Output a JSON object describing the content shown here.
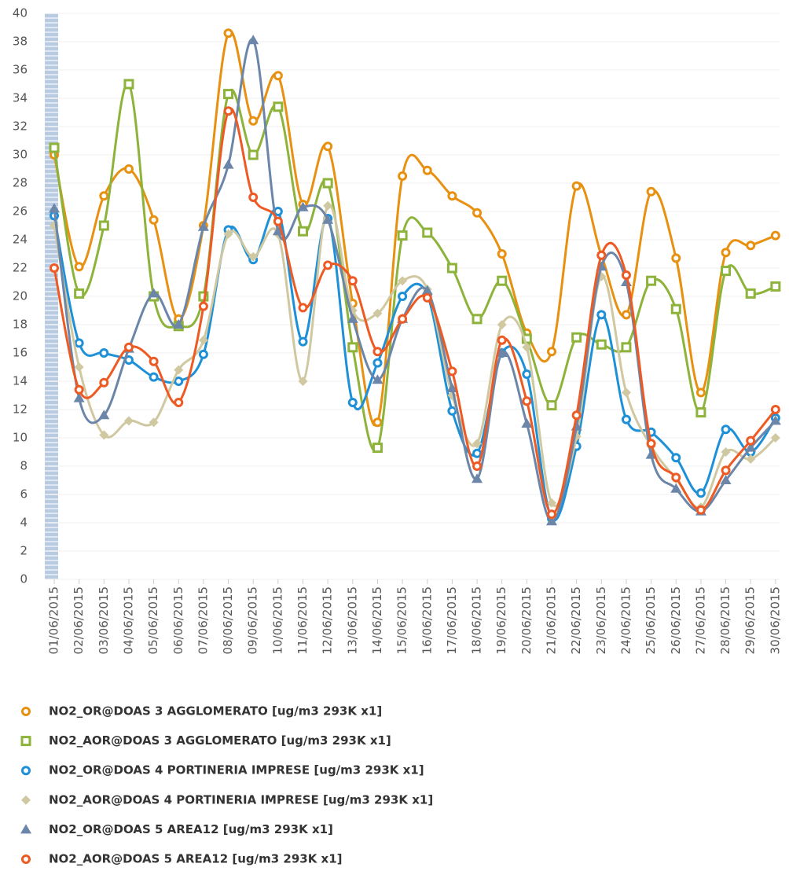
{
  "chart_data": {
    "type": "line",
    "categories": [
      "01/06/2015",
      "02/06/2015",
      "03/06/2015",
      "04/06/2015",
      "05/06/2015",
      "06/06/2015",
      "07/06/2015",
      "08/06/2015",
      "09/06/2015",
      "10/06/2015",
      "11/06/2015",
      "12/06/2015",
      "13/06/2015",
      "14/06/2015",
      "15/06/2015",
      "16/06/2015",
      "17/06/2015",
      "18/06/2015",
      "19/06/2015",
      "20/06/2015",
      "21/06/2015",
      "22/06/2015",
      "23/06/2015",
      "24/06/2015",
      "25/06/2015",
      "26/06/2015",
      "27/06/2015",
      "28/06/2015",
      "29/06/2015",
      "30/06/2015"
    ],
    "series": [
      {
        "name": "NO2_OR@DOAS 3 AGGLOMERATO [ug/m3 293K x1]",
        "color": "#e8900f",
        "marker": "circle",
        "values": [
          30,
          22.1,
          27.1,
          29,
          25.4,
          18.4,
          25,
          38.6,
          32.4,
          35.6,
          26.5,
          30.6,
          19.5,
          11.1,
          28.5,
          28.9,
          27.1,
          25.9,
          23,
          17.4,
          16.1,
          27.8,
          22.9,
          18.7,
          27.4,
          22.7,
          13.2,
          23.1,
          23.6,
          24.3
        ]
      },
      {
        "name": "NO2_AOR@DOAS 3 AGGLOMERATO [ug/m3 293K x1]",
        "color": "#8db33a",
        "marker": "square",
        "values": [
          30.5,
          20.2,
          25,
          35,
          20,
          17.9,
          20,
          34.3,
          30,
          33.4,
          24.6,
          28,
          16.4,
          9.3,
          24.3,
          24.5,
          22,
          18.4,
          21.1,
          17,
          12.3,
          17.1,
          16.6,
          16.4,
          21.1,
          19.1,
          11.8,
          21.8,
          20.2,
          20.7
        ]
      },
      {
        "name": "NO2_OR@DOAS 4 PORTINERIA IMPRESE [ug/m3 293K x1]",
        "color": "#1e90d8",
        "marker": "circle",
        "values": [
          25.7,
          16.7,
          16,
          15.5,
          14.3,
          14,
          15.9,
          24.7,
          22.6,
          26,
          16.8,
          25.5,
          12.5,
          15.3,
          20,
          20.1,
          11.9,
          8.9,
          16,
          14.5,
          4.3,
          9.4,
          18.7,
          11.3,
          10.4,
          8.6,
          6.1,
          10.6,
          9,
          11.4
        ]
      },
      {
        "name": "NO2_AOR@DOAS 4 PORTINERIA IMPRESE [ug/m3 293K x1]",
        "color": "#cfc8a0",
        "marker": "diamond",
        "values": [
          25,
          15,
          10.2,
          11.2,
          11.1,
          14.8,
          16.9,
          24.4,
          22.8,
          24.4,
          14,
          26.4,
          19,
          18.8,
          21.1,
          20.5,
          13,
          9.6,
          18,
          16.4,
          5.4,
          10.1,
          21.4,
          13.2,
          9.4,
          7.1,
          5.1,
          9,
          8.5,
          10
        ]
      },
      {
        "name": "NO2_OR@DOAS 5 AREA12 [ug/m3 293K x1]",
        "color": "#6b86a8",
        "marker": "triangle",
        "values": [
          26.2,
          12.8,
          11.6,
          16.3,
          20.2,
          18,
          24.9,
          29.3,
          38.1,
          24.6,
          26.3,
          25.4,
          18.4,
          14.1,
          18.4,
          20.4,
          13.5,
          7.1,
          16,
          11,
          4.1,
          10.8,
          22.1,
          21,
          8.8,
          6.4,
          4.8,
          7,
          9.3,
          11.2
        ]
      },
      {
        "name": "NO2_AOR@DOAS 5 AREA12 [ug/m3 293K x1]",
        "color": "#ee5a24",
        "marker": "circle",
        "values": [
          22,
          13.4,
          13.9,
          16.4,
          15.4,
          12.5,
          19.3,
          33.1,
          27,
          25.3,
          19.2,
          22.2,
          21.1,
          16.1,
          18.4,
          19.9,
          14.7,
          8,
          16.9,
          12.6,
          4.6,
          11.6,
          22.9,
          21.5,
          9.6,
          7.2,
          4.9,
          7.7,
          9.8,
          12
        ]
      }
    ],
    "ylim": [
      0,
      40
    ],
    "yticks": [
      0,
      2,
      4,
      6,
      8,
      10,
      12,
      14,
      16,
      18,
      20,
      22,
      24,
      26,
      28,
      30,
      32,
      34,
      36,
      38,
      40
    ],
    "grid": true,
    "legend": "bottom"
  }
}
